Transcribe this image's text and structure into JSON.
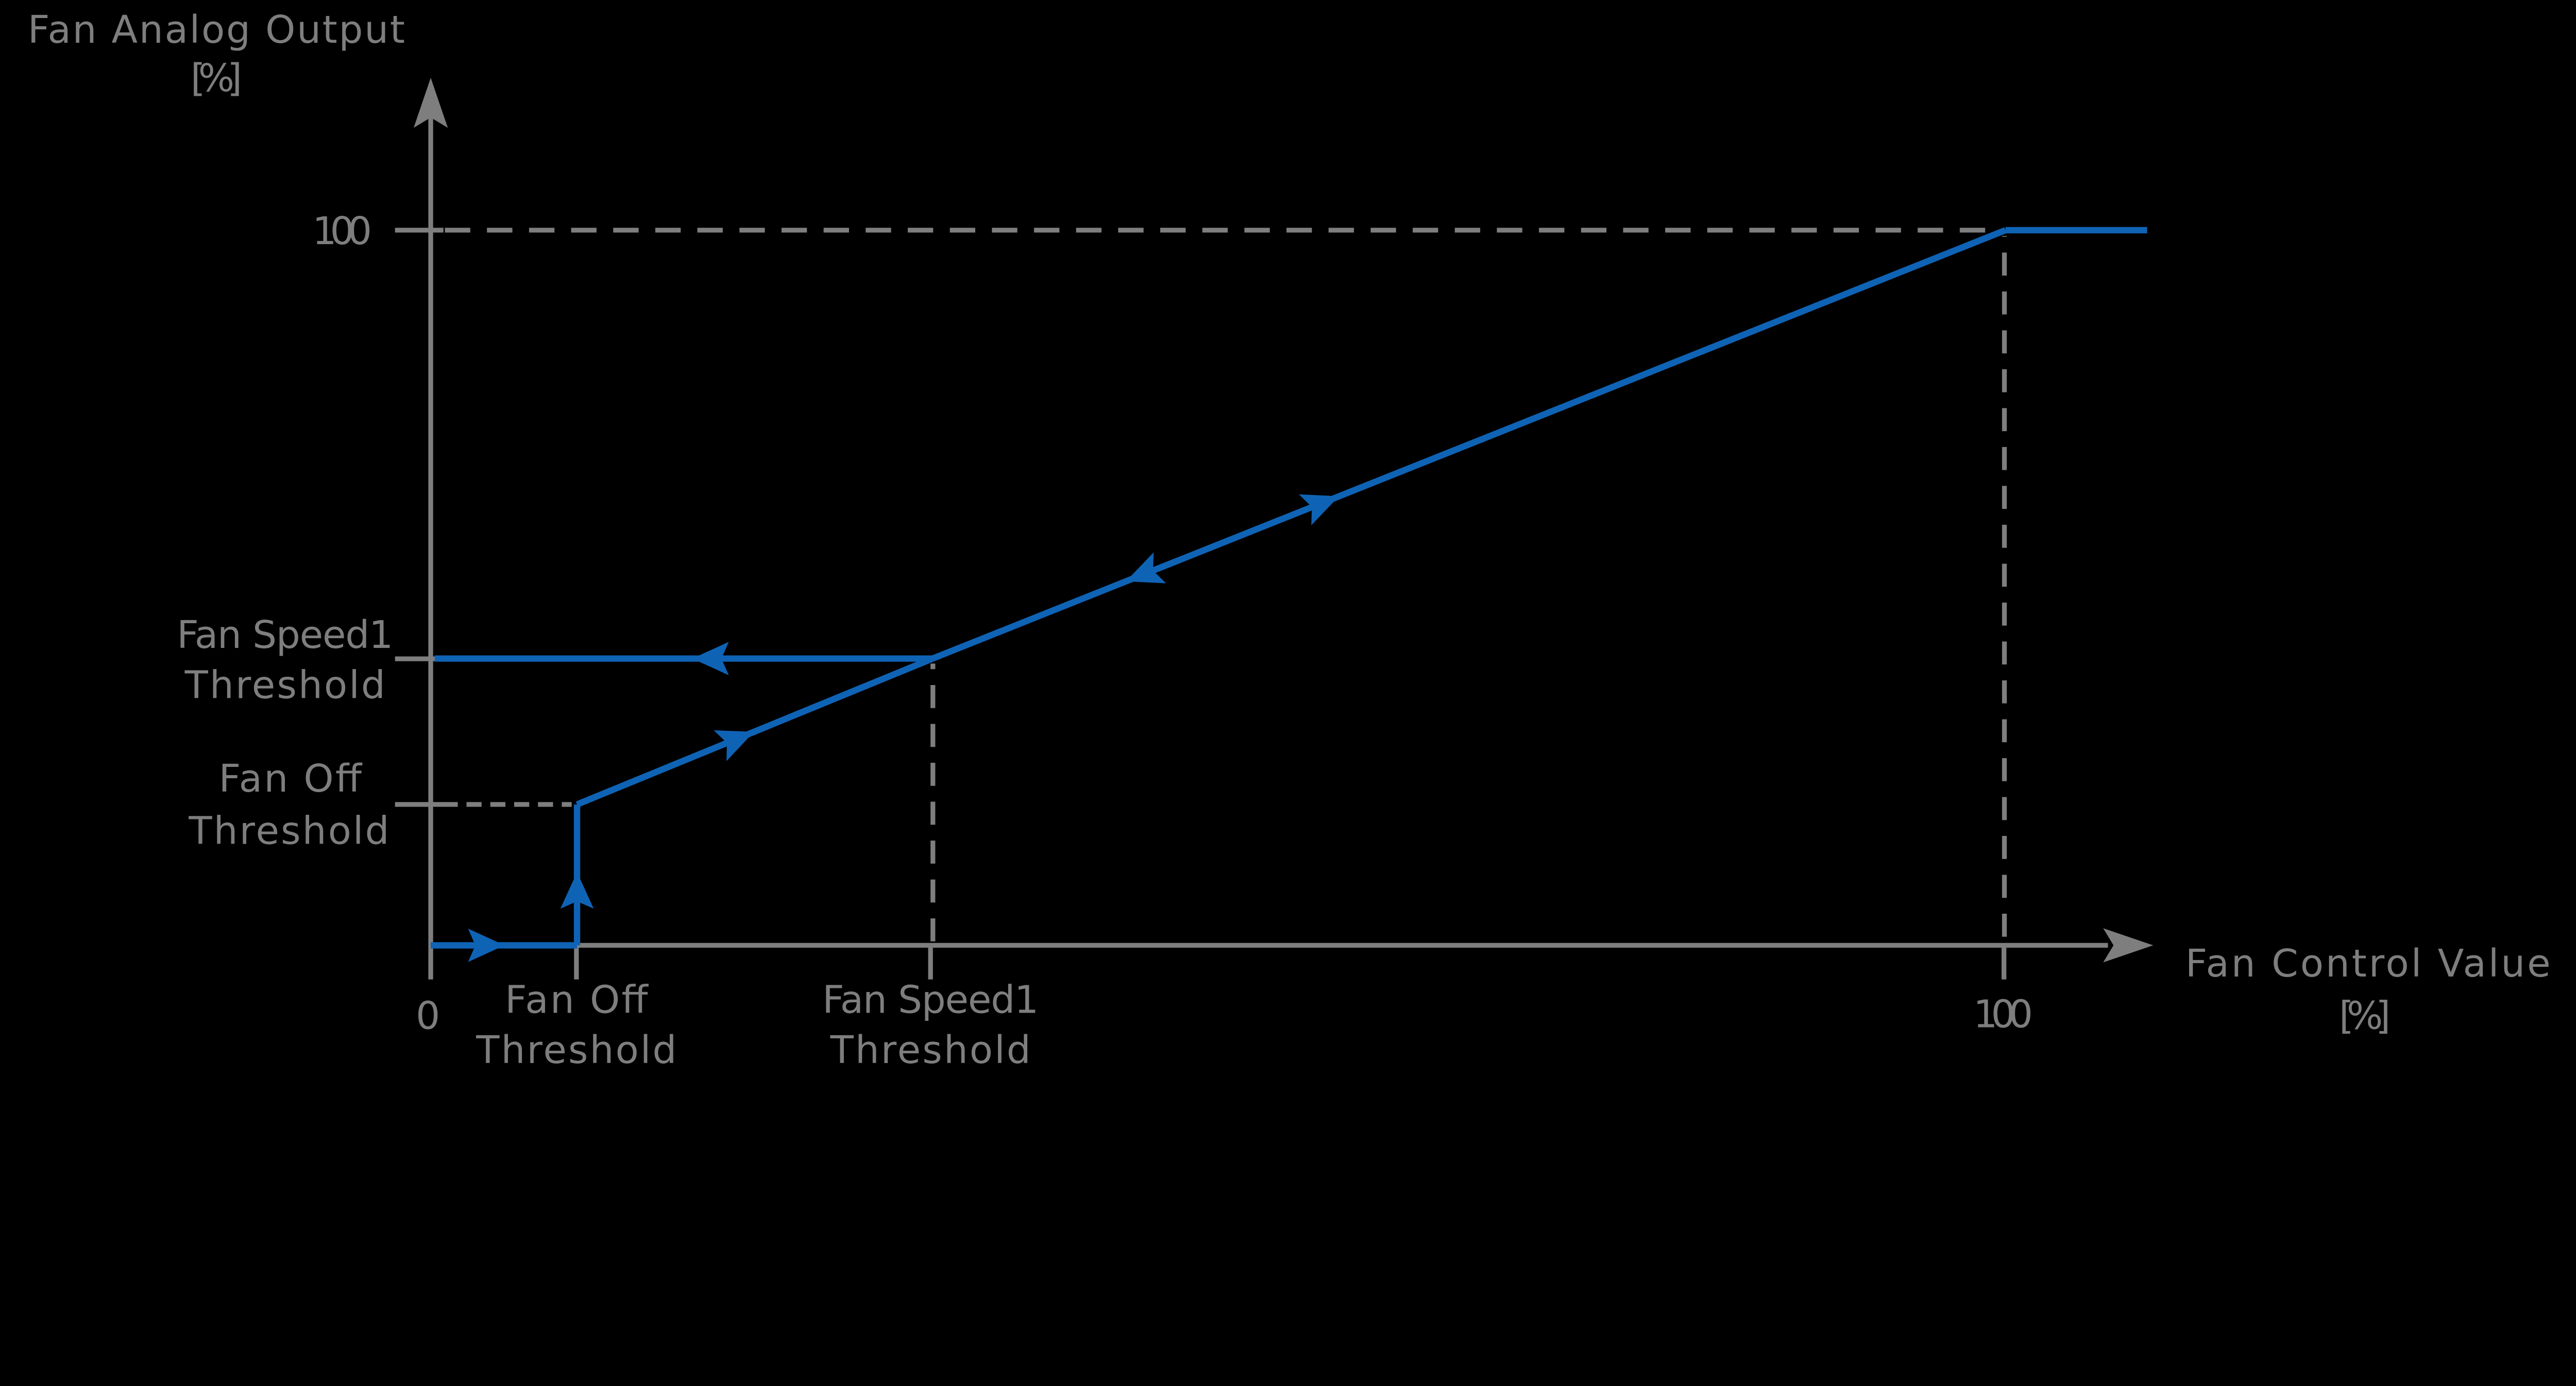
{
  "page": {
    "background": "#000000"
  },
  "colors": {
    "curve_blue": "#0f63b5",
    "diagram_gray": "#7e7e7e"
  },
  "chart_data": {
    "type": "line",
    "description": "Fan analog output versus fan control value with hysteresis flow arrows",
    "grid": "off",
    "legend": "none",
    "y_axis": {
      "label": [
        "Fan Analog Output",
        "[%]"
      ],
      "range": [
        0,
        100
      ],
      "ticks": [
        {
          "value": 100,
          "label": [
            "100"
          ]
        },
        {
          "value": 40.1,
          "label": [
            "Fan Speed1",
            "Threshold"
          ]
        },
        {
          "value": 19.7,
          "label": [
            "Fan Off",
            "Threshold"
          ]
        }
      ]
    },
    "x_axis": {
      "label": [
        "Fan Control Value",
        "[%]"
      ],
      "range": [
        0,
        100
      ],
      "ticks": [
        {
          "value": 0,
          "label": [
            "0"
          ]
        },
        {
          "value": 9.3,
          "label": [
            "Fan Off",
            "Threshold"
          ]
        },
        {
          "value": 31.9,
          "label": [
            "Fan Speed1",
            "Threshold"
          ]
        },
        {
          "value": 100,
          "label": [
            "100"
          ]
        }
      ]
    },
    "thresholds": {
      "fan_off_control_value": 9.3,
      "fan_speed1_control_value": 31.9,
      "fan_off_output": 19.7,
      "fan_speed1_output": 40.1,
      "max_output": 100
    },
    "curve": {
      "color": "#0f63b5",
      "segments": [
        {
          "name": "zero-output-run",
          "from": [
            0,
            0
          ],
          "to": [
            9.3,
            0
          ],
          "arrows": [
            {
              "t": 0.38,
              "dir": 1
            }
          ]
        },
        {
          "name": "fan-off-step-up",
          "from": [
            9.3,
            0
          ],
          "to": [
            9.3,
            19.7
          ],
          "arrows": [
            {
              "t": 0.39,
              "dir": 1
            }
          ]
        },
        {
          "name": "lower-ramp",
          "from": [
            9.3,
            19.7
          ],
          "to": [
            31.9,
            40.1
          ],
          "arrows": [
            {
              "t": 0.45,
              "dir": 1
            }
          ]
        },
        {
          "name": "speed1-return-branch",
          "from": [
            31.9,
            40.1
          ],
          "to": [
            0.25,
            40.1
          ],
          "arrows": [
            {
              "t": 0.446,
              "dir": 1
            }
          ]
        },
        {
          "name": "upper-ramp",
          "from": [
            31.9,
            40.1
          ],
          "to": [
            100.1,
            100
          ],
          "arrows": [
            {
              "t": 0.196,
              "dir": -1
            },
            {
              "t": 0.363,
              "dir": 1
            }
          ]
        },
        {
          "name": "full-speed-plateau",
          "from": [
            100.1,
            100
          ],
          "to": [
            109.1,
            100
          ],
          "arrows": []
        }
      ]
    },
    "guides": [
      {
        "orient": "h",
        "at": 100,
        "from": 0.9,
        "to": 99.3,
        "dash": [
          64,
          42
        ]
      },
      {
        "orient": "h",
        "at": 19.7,
        "from": 0.76,
        "to": 8.96,
        "dash": [
          38,
          22
        ]
      },
      {
        "orient": "v",
        "at": 31.92,
        "from": 0.55,
        "to": 39.4,
        "dash": [
          58,
          40
        ]
      },
      {
        "orient": "v",
        "at": 100.03,
        "from": 1.2,
        "to": 99.2,
        "dash": [
          58,
          40
        ]
      }
    ]
  }
}
